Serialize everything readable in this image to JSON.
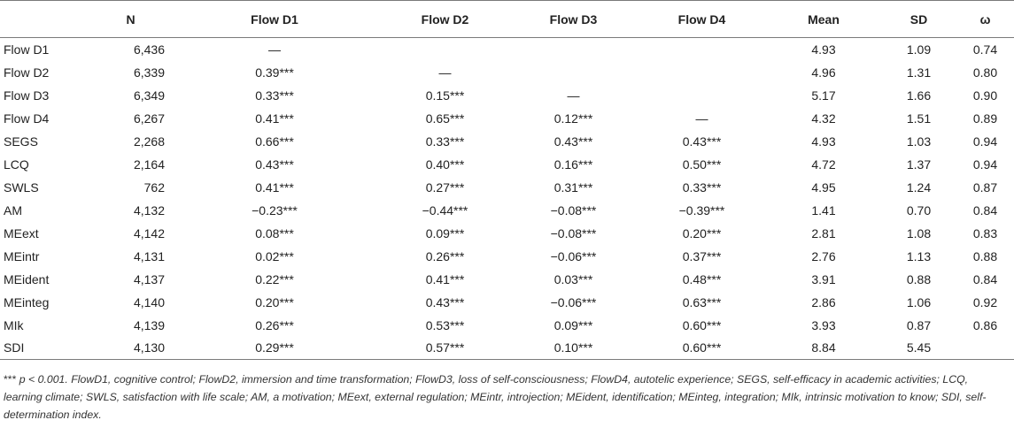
{
  "table": {
    "headers": [
      "",
      "N",
      "Flow D1",
      "Flow D2",
      "Flow D3",
      "Flow D4",
      "Mean",
      "SD",
      "ω"
    ],
    "rows": [
      [
        "Flow D1",
        "6,436",
        "—",
        "",
        "",
        "",
        "4.93",
        "1.09",
        "0.74"
      ],
      [
        "Flow D2",
        "6,339",
        "0.39***",
        "—",
        "",
        "",
        "4.96",
        "1.31",
        "0.80"
      ],
      [
        "Flow D3",
        "6,349",
        "0.33***",
        "0.15***",
        "—",
        "",
        "5.17",
        "1.66",
        "0.90"
      ],
      [
        "Flow D4",
        "6,267",
        "0.41***",
        "0.65***",
        "0.12***",
        "—",
        "4.32",
        "1.51",
        "0.89"
      ],
      [
        "SEGS",
        "2,268",
        "0.66***",
        "0.33***",
        "0.43***",
        "0.43***",
        "4.93",
        "1.03",
        "0.94"
      ],
      [
        "LCQ",
        "2,164",
        "0.43***",
        "0.40***",
        "0.16***",
        "0.50***",
        "4.72",
        "1.37",
        "0.94"
      ],
      [
        "SWLS",
        "762",
        "0.41***",
        "0.27***",
        "0.31***",
        "0.33***",
        "4.95",
        "1.24",
        "0.87"
      ],
      [
        "AM",
        "4,132",
        "−0.23***",
        "−0.44***",
        "−0.08***",
        "−0.39***",
        "1.41",
        "0.70",
        "0.84"
      ],
      [
        "MEext",
        "4,142",
        "0.08***",
        "0.09***",
        "−0.08***",
        "0.20***",
        "2.81",
        "1.08",
        "0.83"
      ],
      [
        "MEintr",
        "4,131",
        "0.02***",
        "0.26***",
        "−0.06***",
        "0.37***",
        "2.76",
        "1.13",
        "0.88"
      ],
      [
        "MEident",
        "4,137",
        "0.22***",
        "0.41***",
        "0.03***",
        "0.48***",
        "3.91",
        "0.88",
        "0.84"
      ],
      [
        "MEinteg",
        "4,140",
        "0.20***",
        "0.43***",
        "−0.06***",
        "0.63***",
        "2.86",
        "1.06",
        "0.92"
      ],
      [
        "MIk",
        "4,139",
        "0.26***",
        "0.53***",
        "0.09***",
        "0.60***",
        "3.93",
        "0.87",
        "0.86"
      ],
      [
        "SDI",
        "4,130",
        "0.29***",
        "0.57***",
        "0.10***",
        "0.60***",
        "8.84",
        "5.45",
        ""
      ]
    ]
  },
  "footnote": {
    "sig": "***",
    "text": " p < 0.001. FlowD1, cognitive control; FlowD2, immersion and time transformation; FlowD3, loss of self-consciousness; FlowD4, autotelic experience; SEGS, self-efficacy in academic activities; LCQ, learning climate; SWLS, satisfaction with life scale; AM, a motivation; MEext, external regulation; MEintr, introjection; MEident, identification; MEinteg, integration; MIk, intrinsic motivation to know; SDI, self-determination index."
  }
}
